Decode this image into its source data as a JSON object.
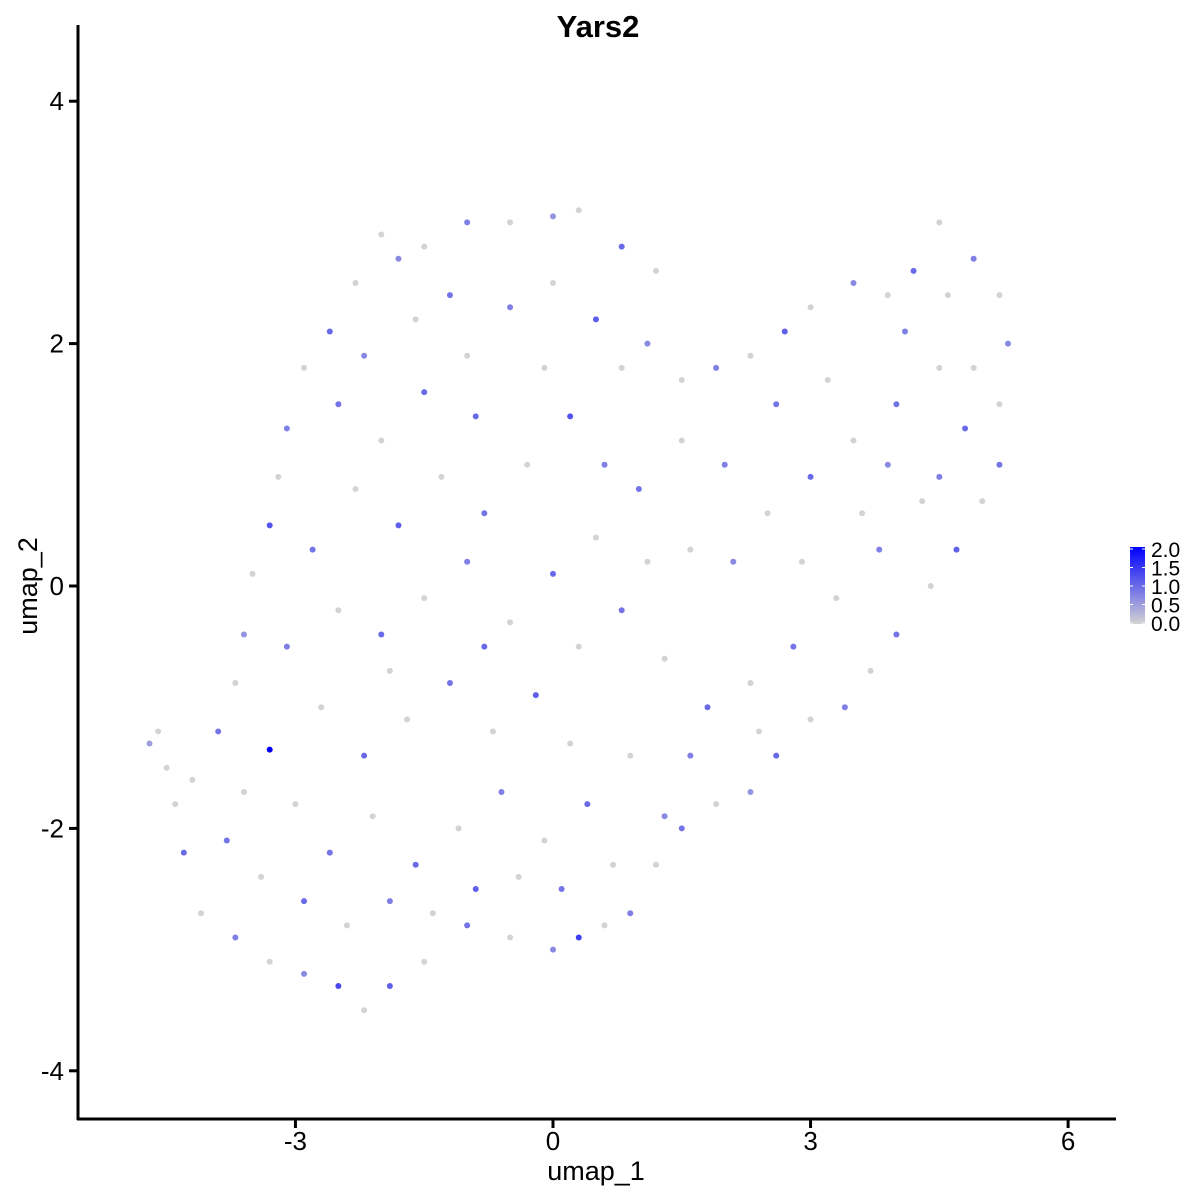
{
  "chart_data": {
    "type": "scatter",
    "title": "Yars2",
    "xlabel": "umap_1",
    "ylabel": "umap_2",
    "xlim": [
      -5.54,
      6.55
    ],
    "ylim": [
      -4.4,
      4.63
    ],
    "xticks": [
      -3,
      0,
      3,
      6
    ],
    "yticks": [
      -4,
      -2,
      0,
      2,
      4
    ],
    "xtick_labels": [
      "-3",
      "0",
      "3",
      "6"
    ],
    "ytick_labels": [
      "-4",
      "-2",
      "0",
      "2",
      "4"
    ],
    "grid": false,
    "legend": {
      "placement": "right",
      "type": "colorbar",
      "range": [
        0,
        2.0
      ],
      "ticks": [
        "0.0",
        "0.5",
        "1.0",
        "1.5",
        "2.0"
      ],
      "low_color": "#d3d3d3",
      "high_color": "#0000ff"
    },
    "points_format": [
      "umap_1",
      "umap_2",
      "expression"
    ],
    "points": [
      [
        -1.5,
        2.8,
        0
      ],
      [
        -1,
        3.0,
        0.8
      ],
      [
        -0.5,
        3.0,
        0
      ],
      [
        0,
        3.05,
        0.6
      ],
      [
        0.3,
        3.1,
        0
      ],
      [
        0.8,
        2.8,
        1.0
      ],
      [
        -2,
        2.9,
        0
      ],
      [
        -1.8,
        2.7,
        0.7
      ],
      [
        -2.3,
        2.5,
        0
      ],
      [
        -2.6,
        2.1,
        1.0
      ],
      [
        -2.9,
        1.8,
        0
      ],
      [
        -3.1,
        1.3,
        0.8
      ],
      [
        -3.2,
        0.9,
        0
      ],
      [
        -3.3,
        0.5,
        1.2
      ],
      [
        -3.5,
        0.1,
        0
      ],
      [
        -3.6,
        -0.4,
        0.6
      ],
      [
        -3.7,
        -0.8,
        0
      ],
      [
        -3.9,
        -1.2,
        0.9
      ],
      [
        -4.2,
        -1.6,
        0
      ],
      [
        -4.3,
        -2.2,
        1.0
      ],
      [
        -4.1,
        -2.7,
        0
      ],
      [
        -3.7,
        -2.9,
        0.8
      ],
      [
        -3.3,
        -3.1,
        0
      ],
      [
        -2.9,
        -3.2,
        0.7
      ],
      [
        -2.5,
        -3.3,
        1.3
      ],
      [
        -2.2,
        -3.5,
        0
      ],
      [
        -1.9,
        -3.3,
        1.1
      ],
      [
        -1.5,
        -3.1,
        0
      ],
      [
        -1.0,
        -2.8,
        0.9
      ],
      [
        -0.5,
        -2.9,
        0
      ],
      [
        0,
        -3.0,
        0.7
      ],
      [
        0.3,
        -2.9,
        1.4
      ],
      [
        0.6,
        -2.8,
        0
      ],
      [
        0.9,
        -2.7,
        0.8
      ],
      [
        1.2,
        -2.3,
        0
      ],
      [
        1.5,
        -2.0,
        0.9
      ],
      [
        1.9,
        -1.8,
        0
      ],
      [
        2.3,
        -1.7,
        0.6
      ],
      [
        2.6,
        -1.4,
        1.0
      ],
      [
        3.0,
        -1.1,
        0
      ],
      [
        3.4,
        -1.0,
        0.8
      ],
      [
        3.7,
        -0.7,
        0
      ],
      [
        4.0,
        -0.4,
        0.9
      ],
      [
        4.4,
        0,
        0
      ],
      [
        4.7,
        0.3,
        1.1
      ],
      [
        5.0,
        0.7,
        0
      ],
      [
        5.2,
        1.0,
        0.9
      ],
      [
        5.2,
        1.5,
        0
      ],
      [
        5.3,
        2.0,
        0.7
      ],
      [
        5.2,
        2.4,
        0
      ],
      [
        4.9,
        2.7,
        0.8
      ],
      [
        4.5,
        3.0,
        0
      ],
      [
        4.2,
        2.6,
        1.0
      ],
      [
        3.9,
        2.4,
        0
      ],
      [
        3.5,
        2.5,
        0.7
      ],
      [
        3.0,
        2.3,
        0
      ],
      [
        2.7,
        2.1,
        1.1
      ],
      [
        2.3,
        1.9,
        0
      ],
      [
        1.9,
        1.8,
        0.8
      ],
      [
        1.5,
        1.7,
        0
      ],
      [
        1.1,
        2.0,
        0.7
      ],
      [
        1.2,
        2.6,
        0
      ],
      [
        -4.6,
        -1.2,
        0
      ],
      [
        -4.7,
        -1.3,
        0.5
      ],
      [
        -4.5,
        -1.5,
        0
      ],
      [
        -4.4,
        -1.8,
        0
      ],
      [
        -3.3,
        -1.35,
        2.0
      ],
      [
        -2.5,
        1.5,
        0.9
      ],
      [
        -2,
        1.2,
        0
      ],
      [
        -1.5,
        1.6,
        1.0
      ],
      [
        -1,
        1.9,
        0
      ],
      [
        -0.5,
        2.3,
        0.8
      ],
      [
        0,
        2.5,
        0
      ],
      [
        0.5,
        2.2,
        1.1
      ],
      [
        0.8,
        1.8,
        0
      ],
      [
        0.2,
        1.4,
        1.2
      ],
      [
        -0.3,
        1.0,
        0
      ],
      [
        -0.8,
        0.6,
        0.9
      ],
      [
        -1.3,
        0.9,
        0
      ],
      [
        -1.8,
        0.5,
        1.1
      ],
      [
        -2.3,
        0.8,
        0
      ],
      [
        -2.8,
        0.3,
        0.9
      ],
      [
        -2.5,
        -0.2,
        0
      ],
      [
        -2.0,
        -0.4,
        1.0
      ],
      [
        -1.5,
        -0.1,
        0
      ],
      [
        -1.0,
        0.2,
        0.8
      ],
      [
        -0.5,
        -0.3,
        0
      ],
      [
        0,
        0.1,
        1.0
      ],
      [
        0.5,
        0.4,
        0
      ],
      [
        1.0,
        0.8,
        0.9
      ],
      [
        1.5,
        1.2,
        0
      ],
      [
        2.0,
        1.0,
        0.8
      ],
      [
        2.5,
        0.6,
        0
      ],
      [
        3.0,
        0.9,
        1.0
      ],
      [
        3.5,
        1.2,
        0
      ],
      [
        4.0,
        1.5,
        0.9
      ],
      [
        4.5,
        1.8,
        0
      ],
      [
        4.8,
        1.3,
        1.0
      ],
      [
        4.3,
        0.7,
        0
      ],
      [
        3.8,
        0.3,
        0.8
      ],
      [
        3.3,
        -0.1,
        0
      ],
      [
        2.8,
        -0.5,
        0.9
      ],
      [
        2.3,
        -0.8,
        0
      ],
      [
        1.8,
        -1.0,
        1.0
      ],
      [
        1.3,
        -0.6,
        0
      ],
      [
        0.8,
        -0.2,
        0.9
      ],
      [
        0.3,
        -0.5,
        0
      ],
      [
        -0.2,
        -0.9,
        1.1
      ],
      [
        -0.7,
        -1.2,
        0
      ],
      [
        -1.2,
        -0.8,
        0.9
      ],
      [
        -1.7,
        -1.1,
        0
      ],
      [
        -2.2,
        -1.4,
        1.0
      ],
      [
        -2.7,
        -1.0,
        0
      ],
      [
        -3.1,
        -0.5,
        0.8
      ],
      [
        -3.0,
        -1.8,
        0
      ],
      [
        -2.6,
        -2.2,
        0.9
      ],
      [
        -2.1,
        -1.9,
        0
      ],
      [
        -1.6,
        -2.3,
        1.0
      ],
      [
        -1.1,
        -2.0,
        0
      ],
      [
        -0.6,
        -1.7,
        0.8
      ],
      [
        -0.1,
        -2.1,
        0
      ],
      [
        0.4,
        -1.8,
        1.0
      ],
      [
        0.9,
        -1.4,
        0
      ],
      [
        1.3,
        -1.9,
        0.7
      ],
      [
        0.7,
        -2.3,
        0
      ],
      [
        0.1,
        -2.5,
        0.9
      ],
      [
        -0.4,
        -2.4,
        0
      ],
      [
        -0.9,
        -2.5,
        1.1
      ],
      [
        -1.4,
        -2.7,
        0
      ],
      [
        -1.9,
        -2.6,
        0.8
      ],
      [
        -2.4,
        -2.8,
        0
      ],
      [
        -2.9,
        -2.6,
        1.0
      ],
      [
        -3.4,
        -2.4,
        0
      ],
      [
        -3.8,
        -2.1,
        0.9
      ],
      [
        -3.6,
        -1.7,
        0
      ],
      [
        1.6,
        0.3,
        0
      ],
      [
        2.1,
        0.2,
        0.7
      ],
      [
        1.1,
        0.2,
        0
      ],
      [
        0.6,
        1.0,
        0.8
      ],
      [
        -0.1,
        1.8,
        0
      ],
      [
        -1.2,
        2.4,
        0.9
      ],
      [
        -1.6,
        2.2,
        0
      ],
      [
        -2.2,
        1.9,
        0.7
      ],
      [
        -0.9,
        1.4,
        1.0
      ],
      [
        -1.9,
        -0.7,
        0
      ],
      [
        -0.8,
        -0.5,
        1.0
      ],
      [
        0.2,
        -1.3,
        0
      ],
      [
        1.6,
        -1.4,
        0.8
      ],
      [
        2.4,
        -1.2,
        0
      ],
      [
        3.6,
        0.6,
        0
      ],
      [
        4.1,
        2.1,
        0.8
      ],
      [
        3.2,
        1.7,
        0
      ],
      [
        2.6,
        1.5,
        0.9
      ],
      [
        4.6,
        2.4,
        0
      ],
      [
        4.9,
        1.8,
        0
      ],
      [
        3.9,
        1.0,
        0.7
      ],
      [
        2.9,
        0.2,
        0
      ],
      [
        4.5,
        0.9,
        0.8
      ]
    ]
  }
}
